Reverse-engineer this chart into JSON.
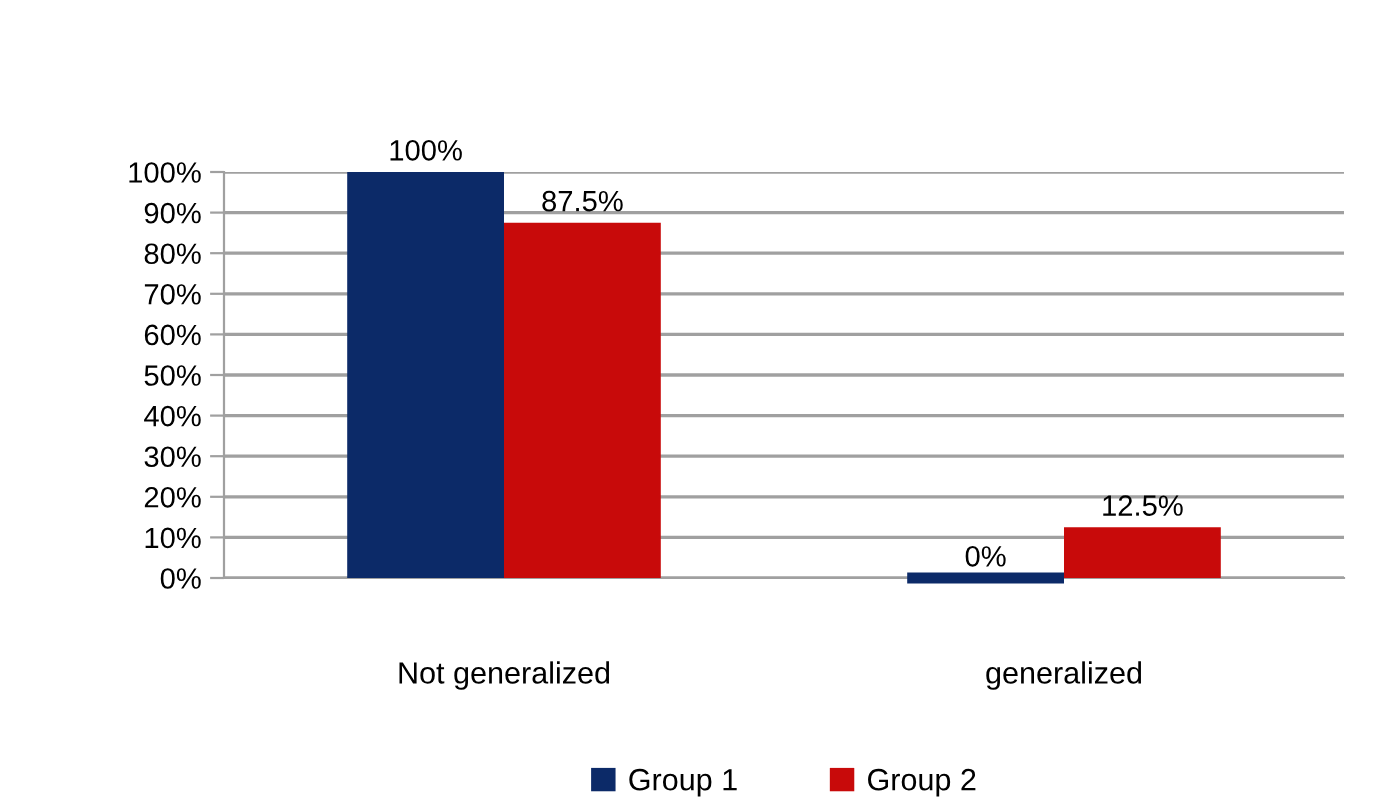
{
  "chart_data": {
    "type": "bar",
    "categories": [
      "Not generalized",
      "generalized"
    ],
    "series": [
      {
        "name": "Group 1",
        "color": "#0c2a68",
        "values": [
          100,
          0
        ],
        "value_labels": [
          "100%",
          "0%"
        ]
      },
      {
        "name": "Group 2",
        "color": "#c80a0a",
        "values": [
          87.5,
          12.5
        ],
        "value_labels": [
          "87.5%",
          "12.5%"
        ]
      }
    ],
    "ylim": [
      0,
      100
    ],
    "yticks": [
      {
        "value": 0,
        "label": "0%"
      },
      {
        "value": 10,
        "label": "10%"
      },
      {
        "value": 20,
        "label": "20%"
      },
      {
        "value": 30,
        "label": "30%"
      },
      {
        "value": 40,
        "label": "40%"
      },
      {
        "value": 50,
        "label": "50%"
      },
      {
        "value": 60,
        "label": "60%"
      },
      {
        "value": 70,
        "label": "70%"
      },
      {
        "value": 80,
        "label": "80%"
      },
      {
        "value": 90,
        "label": "90%"
      },
      {
        "value": 100,
        "label": "100%"
      }
    ],
    "grid": "y",
    "legend": "bottom"
  }
}
